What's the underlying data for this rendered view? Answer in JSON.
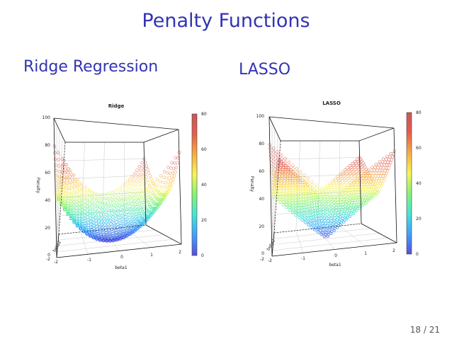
{
  "slide": {
    "title": "Penalty Functions",
    "page_number": "18 / 21"
  },
  "sections": {
    "left": "Ridge Regression",
    "right": "LASSO"
  },
  "colors": {
    "title": "#3333b3",
    "colormap": [
      "#3b2fd6",
      "#1f8fff",
      "#21e0d0",
      "#70f060",
      "#f7f23a",
      "#f5a020",
      "#e04030",
      "#c03838"
    ]
  },
  "chart_data": [
    {
      "type": "scatter",
      "subtype": "3d-surface-points",
      "title": "Ridge",
      "formula": "beta1^2 + beta2^2",
      "xlabel": "beta1",
      "ylabel": "beta2",
      "zlabel": "Penalty",
      "xlim": [
        -2,
        2
      ],
      "ylim": [
        -2,
        2
      ],
      "zlim": [
        0,
        100
      ],
      "x_ticks": [
        "-2",
        "-1",
        "0",
        "1",
        "2"
      ],
      "y_ticks": [
        "-2"
      ],
      "z_ticks": [
        "0",
        "20",
        "40",
        "60",
        "80",
        "100"
      ],
      "colorbar_ticks": [
        "0",
        "20",
        "40",
        "60",
        "80"
      ],
      "colorbar_range": [
        0,
        80
      ],
      "grid": true
    },
    {
      "type": "scatter",
      "subtype": "3d-surface-points",
      "title": "LASSO",
      "formula": "|beta1| + |beta2|",
      "xlabel": "beta1",
      "ylabel": "beta2",
      "zlabel": "Penalty",
      "xlim": [
        -2,
        2
      ],
      "ylim": [
        -2,
        2
      ],
      "zlim": [
        0,
        100
      ],
      "x_ticks": [
        "-2",
        "-1",
        "0",
        "1",
        "2"
      ],
      "y_ticks": [
        "-2"
      ],
      "z_ticks": [
        "0",
        "20",
        "40",
        "60",
        "80",
        "100"
      ],
      "colorbar_ticks": [
        "0",
        "20",
        "40",
        "60",
        "80"
      ],
      "colorbar_range": [
        0,
        80
      ],
      "grid": true
    }
  ]
}
